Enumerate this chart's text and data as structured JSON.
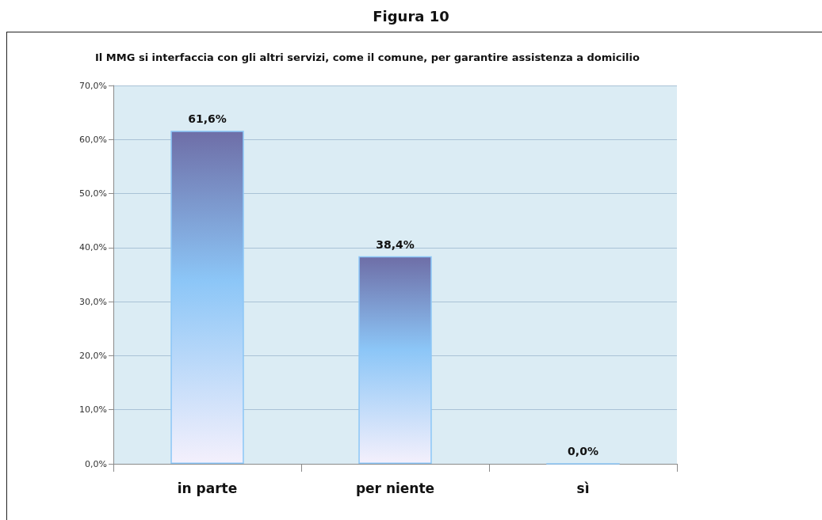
{
  "chart_data": {
    "type": "bar",
    "title": "Figura 10",
    "subtitle": "Il MMG si interfaccia con gli altri servizi, come il comune, per garantire assistenza a domicilio",
    "categories": [
      "in parte",
      "per niente",
      "sì"
    ],
    "series": [
      {
        "color": "#8cc6f7",
        "values": [
          61.6,
          38.4,
          0
        ],
        "value_labels": [
          "61,6%",
          "38,4%",
          "0,0%"
        ]
      }
    ],
    "ylim": [
      0,
      70
    ],
    "yticks": [
      {
        "value": 0,
        "label": "0,0%"
      },
      {
        "value": 10,
        "label": "10,0%"
      },
      {
        "value": 20,
        "label": "20,0%"
      },
      {
        "value": 30,
        "label": "30,0%"
      },
      {
        "value": 40,
        "label": "40,0%"
      },
      {
        "value": 50,
        "label": "50,0%"
      },
      {
        "value": 60,
        "label": "60,0%"
      },
      {
        "value": 70,
        "label": "70,0%"
      }
    ],
    "grid": "y"
  }
}
